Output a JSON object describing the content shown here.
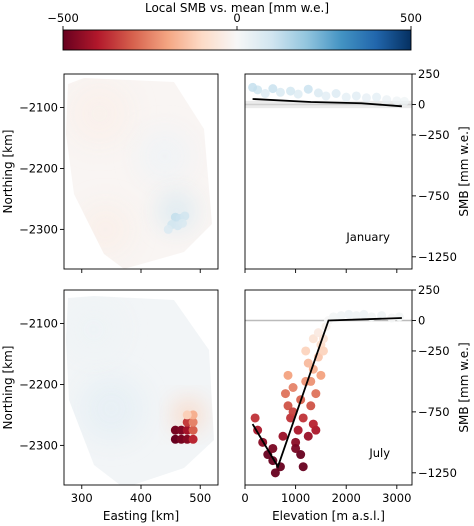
{
  "colorbar": {
    "label": "Local SMB vs. mean [mm w.e.]",
    "ticks": [
      "−500",
      "0",
      "500"
    ],
    "vmin": -500,
    "vmax": 500,
    "colors": [
      "#67001f",
      "#b2182b",
      "#d6604d",
      "#f4a582",
      "#fddbc7",
      "#f7f7f7",
      "#d1e5f0",
      "#92c5de",
      "#4393c3",
      "#2166ac",
      "#053061"
    ]
  },
  "chart_data": [
    {
      "type": "heatmap",
      "panel": "map-january",
      "xlabel": "",
      "ylabel": "Northing [km]",
      "xlim": [
        270,
        530
      ],
      "ylim": [
        -2365,
        -2045
      ],
      "xticks": [],
      "yticks": [
        {
          "v": -2100,
          "t": "−2100"
        },
        {
          "v": -2200,
          "t": "−2200"
        },
        {
          "v": -2300,
          "t": "−2300"
        }
      ],
      "color_range": [
        -500,
        500
      ],
      "regions": [
        {
          "x": 330,
          "y": -2110,
          "r": 55,
          "value": -25
        },
        {
          "x": 440,
          "y": -2180,
          "r": 45,
          "value": 20
        },
        {
          "x": 460,
          "y": -2270,
          "r": 32,
          "value": 80
        },
        {
          "x": 340,
          "y": -2300,
          "r": 45,
          "value": -30
        }
      ]
    },
    {
      "type": "scatter",
      "panel": "profile-january",
      "annotation": "January",
      "xlabel": "",
      "ylabel": "SMB [mm w.e.]",
      "xlim": [
        0,
        3300
      ],
      "ylim": [
        -1350,
        250
      ],
      "xticks": [],
      "yticks": [
        {
          "v": 250,
          "t": "250"
        },
        {
          "v": 0,
          "t": "0"
        },
        {
          "v": -250,
          "t": "−250"
        },
        {
          "v": -750,
          "t": "−750"
        },
        {
          "v": -1250,
          "t": "−1250"
        }
      ],
      "reference_line": 0,
      "series": [
        {
          "points": [
            [
              150,
              140
            ],
            [
              250,
              120
            ],
            [
              400,
              90
            ],
            [
              550,
              130
            ],
            [
              700,
              100
            ],
            [
              900,
              110
            ],
            [
              1050,
              85
            ],
            [
              1250,
              125
            ],
            [
              1450,
              95
            ],
            [
              1600,
              70
            ],
            [
              1800,
              90
            ],
            [
              2000,
              60
            ],
            [
              2200,
              70
            ],
            [
              2400,
              55
            ],
            [
              2600,
              60
            ],
            [
              2800,
              40
            ],
            [
              3000,
              30
            ],
            [
              3150,
              25
            ]
          ]
        }
      ],
      "fit_line": [
        [
          150,
          45
        ],
        [
          1300,
          20
        ],
        [
          2300,
          10
        ],
        [
          3100,
          -15
        ]
      ]
    },
    {
      "type": "heatmap",
      "panel": "map-july",
      "xlabel": "Easting [km]",
      "ylabel": "Northing [km]",
      "xlim": [
        270,
        530
      ],
      "ylim": [
        -2365,
        -2045
      ],
      "xticks": [
        {
          "v": 300,
          "t": "300"
        },
        {
          "v": 400,
          "t": "400"
        },
        {
          "v": 500,
          "t": "500"
        }
      ],
      "yticks": [
        {
          "v": -2100,
          "t": "−2100"
        },
        {
          "v": -2200,
          "t": "−2200"
        },
        {
          "v": -2300,
          "t": "−2300"
        }
      ],
      "color_range": [
        -500,
        500
      ],
      "regions": [
        {
          "x": 350,
          "y": -2240,
          "r": 55,
          "value": 45
        },
        {
          "x": 320,
          "y": -2110,
          "r": 50,
          "value": 25
        },
        {
          "x": 480,
          "y": -2250,
          "r": 25,
          "value": -120
        }
      ],
      "cells": [
        {
          "x": 458,
          "y": -2275,
          "value": -480
        },
        {
          "x": 468,
          "y": -2275,
          "value": -470
        },
        {
          "x": 478,
          "y": -2275,
          "value": -420
        },
        {
          "x": 488,
          "y": -2275,
          "value": -300
        },
        {
          "x": 458,
          "y": -2290,
          "value": -500
        },
        {
          "x": 468,
          "y": -2290,
          "value": -480
        },
        {
          "x": 478,
          "y": -2290,
          "value": -460
        },
        {
          "x": 488,
          "y": -2290,
          "value": -380
        },
        {
          "x": 478,
          "y": -2262,
          "value": -350
        },
        {
          "x": 488,
          "y": -2262,
          "value": -250
        },
        {
          "x": 488,
          "y": -2250,
          "value": -180
        },
        {
          "x": 478,
          "y": -2250,
          "value": -120
        }
      ]
    },
    {
      "type": "scatter",
      "panel": "profile-july",
      "annotation": "July",
      "xlabel": "Elevation [m a.s.l.]",
      "ylabel": "SMB [mm w.e.]",
      "xlim": [
        0,
        3300
      ],
      "ylim": [
        -1350,
        250
      ],
      "xticks": [
        {
          "v": 0,
          "t": "0"
        },
        {
          "v": 1000,
          "t": "1000"
        },
        {
          "v": 2000,
          "t": "2000"
        },
        {
          "v": 3000,
          "t": "3000"
        }
      ],
      "yticks": [
        {
          "v": 250,
          "t": "250"
        },
        {
          "v": 0,
          "t": "0"
        },
        {
          "v": -250,
          "t": "−250"
        },
        {
          "v": -750,
          "t": "−750"
        },
        {
          "v": -1250,
          "t": "−1250"
        }
      ],
      "reference_line": 0,
      "series": [
        {
          "points": [
            [
              200,
              -800
            ],
            [
              250,
              -900
            ],
            [
              350,
              -1000
            ],
            [
              450,
              -1100
            ],
            [
              550,
              -1150
            ],
            [
              600,
              -1250
            ],
            [
              700,
              -1200
            ],
            [
              550,
              -1050
            ],
            [
              800,
              -600
            ],
            [
              850,
              -700
            ],
            [
              900,
              -800
            ],
            [
              950,
              -550
            ],
            [
              1000,
              -1000
            ],
            [
              1050,
              -900
            ],
            [
              1100,
              -650
            ],
            [
              1100,
              -1100
            ],
            [
              1150,
              -800
            ],
            [
              1200,
              -500
            ],
            [
              1250,
              -950
            ],
            [
              1300,
              -700
            ],
            [
              1350,
              -400
            ],
            [
              1400,
              -600
            ],
            [
              1400,
              -900
            ],
            [
              1450,
              -300
            ],
            [
              1500,
              -200
            ],
            [
              1550,
              -250
            ],
            [
              1300,
              -500
            ],
            [
              1250,
              -350
            ],
            [
              1350,
              -150
            ],
            [
              1450,
              -100
            ],
            [
              1600,
              -50
            ],
            [
              1650,
              0
            ],
            [
              1750,
              30
            ],
            [
              1900,
              40
            ],
            [
              2050,
              50
            ],
            [
              2200,
              40
            ],
            [
              2350,
              50
            ],
            [
              2500,
              30
            ],
            [
              2700,
              40
            ],
            [
              2900,
              20
            ],
            [
              3050,
              30
            ],
            [
              850,
              -450
            ],
            [
              950,
              -750
            ],
            [
              1150,
              -1200
            ],
            [
              1500,
              -450
            ],
            [
              1000,
              -1050
            ],
            [
              750,
              -950
            ],
            [
              1200,
              -250
            ],
            [
              1550,
              -150
            ],
            [
              1350,
              -850
            ]
          ]
        }
      ],
      "fit_line": [
        [
          150,
          -850
        ],
        [
          650,
          -1200
        ],
        [
          1650,
          0
        ],
        [
          3100,
          20
        ]
      ]
    }
  ]
}
